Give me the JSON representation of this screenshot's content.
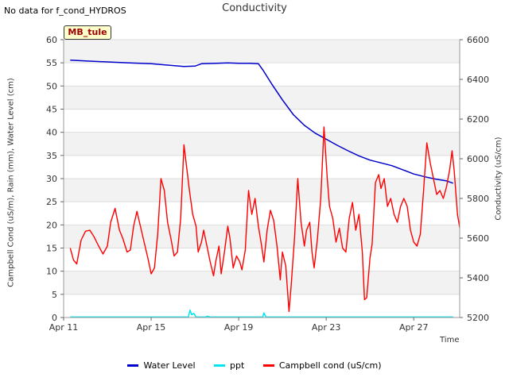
{
  "no_data_note": "No data for f_cond_HYDROS",
  "site_badge": "MB_tule",
  "chart_data": {
    "type": "line",
    "title": "Conductivity",
    "xlabel": "Time",
    "ylabel_left": "Campbell Cond (uS/m), Rain (mm), Water Level (cm)",
    "ylabel_right": "Conductivity (uS/cm)",
    "x_unit": "day of April",
    "xlim": [
      11,
      29.1
    ],
    "ylim_left": [
      0,
      60
    ],
    "ylim_right": [
      5200,
      6600
    ],
    "x_ticks": [
      {
        "value": 11,
        "label": "Apr 11"
      },
      {
        "value": 15,
        "label": "Apr 15"
      },
      {
        "value": 19,
        "label": "Apr 19"
      },
      {
        "value": 23,
        "label": "Apr 23"
      },
      {
        "value": 27,
        "label": "Apr 27"
      }
    ],
    "y_ticks_left": [
      0,
      5,
      10,
      15,
      20,
      25,
      30,
      35,
      40,
      45,
      50,
      55,
      60
    ],
    "y_ticks_right": [
      5200,
      5400,
      5600,
      5800,
      6000,
      6200,
      6400,
      6600
    ],
    "grid": "horizontal bands",
    "legend_position": "bottom",
    "series": [
      {
        "name": "Water Level",
        "axis": "left",
        "color": "#0000cc",
        "points": [
          [
            11.3,
            55.6
          ],
          [
            12,
            55.4
          ],
          [
            13,
            55.2
          ],
          [
            14,
            55.0
          ],
          [
            15,
            54.8
          ],
          [
            15.8,
            54.5
          ],
          [
            16.5,
            54.2
          ],
          [
            17.0,
            54.3
          ],
          [
            17.3,
            54.8
          ],
          [
            18,
            54.9
          ],
          [
            18.5,
            55.0
          ],
          [
            19,
            54.9
          ],
          [
            19.5,
            54.9
          ],
          [
            19.9,
            54.8
          ],
          [
            20.1,
            53.5
          ],
          [
            20.5,
            50.5
          ],
          [
            21,
            47.0
          ],
          [
            21.5,
            43.8
          ],
          [
            22,
            41.5
          ],
          [
            22.5,
            39.8
          ],
          [
            23,
            38.5
          ],
          [
            23.5,
            37.2
          ],
          [
            24,
            36.0
          ],
          [
            24.5,
            34.9
          ],
          [
            25,
            34.0
          ],
          [
            25.5,
            33.4
          ],
          [
            26,
            32.8
          ],
          [
            26.5,
            31.9
          ],
          [
            27,
            31.0
          ],
          [
            27.5,
            30.4
          ],
          [
            28,
            29.9
          ],
          [
            28.5,
            29.5
          ],
          [
            28.8,
            29.0
          ]
        ]
      },
      {
        "name": "ppt",
        "axis": "left",
        "color": "#00e5ee",
        "points": [
          [
            11.3,
            0.1
          ],
          [
            16.7,
            0.1
          ],
          [
            16.78,
            1.6
          ],
          [
            16.85,
            0.6
          ],
          [
            16.95,
            0.9
          ],
          [
            17.05,
            0.1
          ],
          [
            17.5,
            0.1
          ],
          [
            17.55,
            0.3
          ],
          [
            17.7,
            0.1
          ],
          [
            20.1,
            0.1
          ],
          [
            20.15,
            1.0
          ],
          [
            20.25,
            0.1
          ],
          [
            28.8,
            0.1
          ]
        ]
      },
      {
        "name": "Campbell cond (uS/cm)",
        "axis": "right",
        "color": "#ff0000",
        "points": [
          [
            11.3,
            5550
          ],
          [
            11.45,
            5490
          ],
          [
            11.6,
            5470
          ],
          [
            11.8,
            5590
          ],
          [
            12.0,
            5635
          ],
          [
            12.2,
            5640
          ],
          [
            12.4,
            5605
          ],
          [
            12.6,
            5560
          ],
          [
            12.8,
            5520
          ],
          [
            13.0,
            5560
          ],
          [
            13.15,
            5680
          ],
          [
            13.35,
            5750
          ],
          [
            13.55,
            5640
          ],
          [
            13.7,
            5600
          ],
          [
            13.9,
            5530
          ],
          [
            14.05,
            5540
          ],
          [
            14.2,
            5660
          ],
          [
            14.35,
            5735
          ],
          [
            14.55,
            5640
          ],
          [
            14.7,
            5570
          ],
          [
            14.85,
            5500
          ],
          [
            15.0,
            5420
          ],
          [
            15.15,
            5450
          ],
          [
            15.3,
            5620
          ],
          [
            15.45,
            5900
          ],
          [
            15.6,
            5840
          ],
          [
            15.75,
            5680
          ],
          [
            15.9,
            5600
          ],
          [
            16.05,
            5510
          ],
          [
            16.2,
            5530
          ],
          [
            16.35,
            5700
          ],
          [
            16.5,
            6070
          ],
          [
            16.62,
            5960
          ],
          [
            16.75,
            5840
          ],
          [
            16.9,
            5720
          ],
          [
            17.05,
            5660
          ],
          [
            17.15,
            5530
          ],
          [
            17.3,
            5580
          ],
          [
            17.4,
            5640
          ],
          [
            17.55,
            5560
          ],
          [
            17.7,
            5480
          ],
          [
            17.85,
            5410
          ],
          [
            17.95,
            5480
          ],
          [
            18.1,
            5560
          ],
          [
            18.2,
            5420
          ],
          [
            18.35,
            5530
          ],
          [
            18.5,
            5660
          ],
          [
            18.6,
            5600
          ],
          [
            18.75,
            5450
          ],
          [
            18.9,
            5510
          ],
          [
            19.05,
            5480
          ],
          [
            19.15,
            5440
          ],
          [
            19.3,
            5540
          ],
          [
            19.45,
            5840
          ],
          [
            19.6,
            5720
          ],
          [
            19.75,
            5800
          ],
          [
            19.9,
            5660
          ],
          [
            20.05,
            5560
          ],
          [
            20.15,
            5480
          ],
          [
            20.3,
            5640
          ],
          [
            20.45,
            5740
          ],
          [
            20.6,
            5690
          ],
          [
            20.75,
            5560
          ],
          [
            20.9,
            5390
          ],
          [
            21.0,
            5530
          ],
          [
            21.15,
            5460
          ],
          [
            21.3,
            5230
          ],
          [
            21.4,
            5360
          ],
          [
            21.55,
            5600
          ],
          [
            21.7,
            5900
          ],
          [
            21.85,
            5680
          ],
          [
            22.0,
            5560
          ],
          [
            22.1,
            5640
          ],
          [
            22.25,
            5680
          ],
          [
            22.35,
            5530
          ],
          [
            22.45,
            5450
          ],
          [
            22.6,
            5600
          ],
          [
            22.75,
            5800
          ],
          [
            22.9,
            6160
          ],
          [
            23.05,
            5900
          ],
          [
            23.15,
            5760
          ],
          [
            23.3,
            5700
          ],
          [
            23.45,
            5580
          ],
          [
            23.6,
            5650
          ],
          [
            23.75,
            5550
          ],
          [
            23.9,
            5530
          ],
          [
            24.05,
            5700
          ],
          [
            24.2,
            5780
          ],
          [
            24.35,
            5640
          ],
          [
            24.5,
            5720
          ],
          [
            24.65,
            5530
          ],
          [
            24.75,
            5290
          ],
          [
            24.85,
            5300
          ],
          [
            25.0,
            5500
          ],
          [
            25.1,
            5570
          ],
          [
            25.25,
            5880
          ],
          [
            25.4,
            5920
          ],
          [
            25.5,
            5850
          ],
          [
            25.65,
            5900
          ],
          [
            25.8,
            5760
          ],
          [
            25.95,
            5800
          ],
          [
            26.1,
            5720
          ],
          [
            26.25,
            5680
          ],
          [
            26.4,
            5760
          ],
          [
            26.55,
            5800
          ],
          [
            26.7,
            5760
          ],
          [
            26.85,
            5640
          ],
          [
            27.0,
            5580
          ],
          [
            27.15,
            5560
          ],
          [
            27.3,
            5620
          ],
          [
            27.45,
            5840
          ],
          [
            27.6,
            6080
          ],
          [
            27.75,
            5980
          ],
          [
            27.9,
            5900
          ],
          [
            28.05,
            5820
          ],
          [
            28.2,
            5840
          ],
          [
            28.35,
            5800
          ],
          [
            28.5,
            5860
          ],
          [
            28.65,
            5950
          ],
          [
            28.75,
            6040
          ],
          [
            28.85,
            5940
          ],
          [
            29.0,
            5720
          ],
          [
            29.15,
            5620
          ],
          [
            29.3,
            5680
          ],
          [
            29.45,
            5960
          ],
          [
            29.6,
            6200
          ],
          [
            29.75,
            6440
          ],
          [
            29.9,
            6300
          ],
          [
            30.05,
            6150
          ],
          [
            30.2,
            6020
          ],
          [
            30.35,
            5980
          ]
        ]
      }
    ]
  }
}
